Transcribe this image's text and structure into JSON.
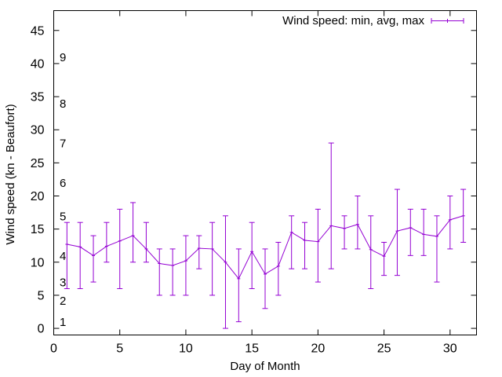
{
  "chart_data": {
    "type": "line",
    "title": "",
    "xlabel": "Day of Month",
    "ylabel": "Wind speed (kn - Beaufort)",
    "xlim": [
      0,
      32
    ],
    "ylim": [
      -1,
      48
    ],
    "xticks": [
      0,
      5,
      10,
      15,
      20,
      25,
      30
    ],
    "yticks": [
      0,
      5,
      10,
      15,
      20,
      25,
      30,
      35,
      40,
      45
    ],
    "grid": false,
    "legend_position": "top-right",
    "series": [
      {
        "name": "Wind speed: min, avg, max",
        "color": "#9400d3",
        "x": [
          1,
          2,
          3,
          4,
          5,
          6,
          7,
          8,
          9,
          10,
          11,
          12,
          13,
          14,
          15,
          16,
          17,
          18,
          19,
          20,
          21,
          22,
          23,
          24,
          25,
          26,
          27,
          28,
          29,
          30,
          31
        ],
        "avg": [
          12.7,
          12.3,
          11.0,
          12.4,
          13.2,
          14.0,
          12.0,
          9.8,
          9.5,
          10.2,
          12.1,
          12.0,
          10.0,
          7.5,
          11.6,
          8.2,
          9.4,
          14.5,
          13.3,
          13.1,
          15.5,
          15.1,
          15.7,
          11.9,
          10.9,
          14.7,
          15.2,
          14.2,
          13.9,
          16.4,
          17.0
        ],
        "min": [
          6,
          6,
          7,
          10,
          6,
          10,
          10,
          5,
          5,
          5,
          9,
          5,
          0,
          1,
          6,
          3,
          5,
          9,
          9,
          7,
          9,
          12,
          12,
          6,
          8,
          8,
          11,
          11,
          7,
          12,
          13
        ],
        "max": [
          16,
          16,
          14,
          16,
          18,
          19,
          16,
          12,
          12,
          14,
          14,
          16,
          17,
          12,
          16,
          12,
          13,
          17,
          16,
          18,
          28,
          17,
          20,
          17,
          13,
          21,
          18,
          18,
          17,
          20,
          21
        ]
      }
    ],
    "beaufort_labels": [
      {
        "label": "1",
        "value": 1
      },
      {
        "label": "2",
        "value": 4.2
      },
      {
        "label": "3",
        "value": 7
      },
      {
        "label": "4",
        "value": 11
      },
      {
        "label": "5",
        "value": 17
      },
      {
        "label": "6",
        "value": 22
      },
      {
        "label": "7",
        "value": 28
      },
      {
        "label": "8",
        "value": 34
      },
      {
        "label": "9",
        "value": 41
      }
    ]
  }
}
